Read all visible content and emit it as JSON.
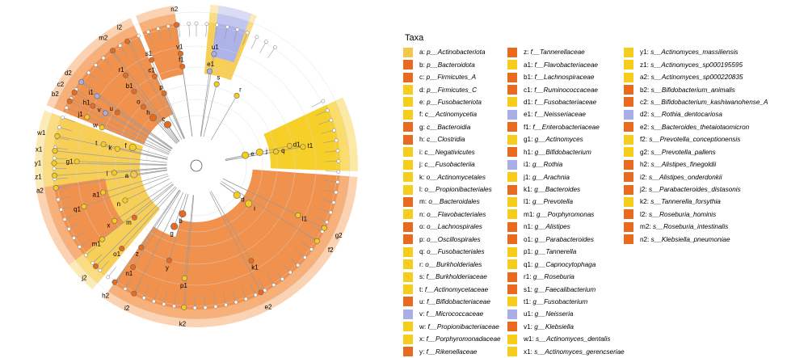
{
  "legend": {
    "title": "Taxa",
    "colors": {
      "O": "#e86a1f",
      "L": "#f5c64a",
      "Y": "#f7cd1d",
      "B": "#a9aee6"
    },
    "columns": [
      [
        {
          "key": "a",
          "name": "p__Actinobacteriota",
          "color": "L"
        },
        {
          "key": "b",
          "name": "p__Bacteroidota",
          "color": "O"
        },
        {
          "key": "c",
          "name": "p__Firmicutes_A",
          "color": "O"
        },
        {
          "key": "d",
          "name": "p__Firmicutes_C",
          "color": "Y"
        },
        {
          "key": "e",
          "name": "p__Fusobacteriota",
          "color": "Y"
        },
        {
          "key": "f",
          "name": "c__Actinomycetia",
          "color": "Y"
        },
        {
          "key": "g",
          "name": "c__Bacteroidia",
          "color": "O"
        },
        {
          "key": "h",
          "name": "c__Clostridia",
          "color": "O"
        },
        {
          "key": "i",
          "name": "c__Negativicutes",
          "color": "Y"
        },
        {
          "key": "j",
          "name": "c__Fusobacteriia",
          "color": "Y"
        },
        {
          "key": "k",
          "name": "o__Actinomycetales",
          "color": "Y"
        },
        {
          "key": "l",
          "name": "o__Propionibacteriales",
          "color": "Y"
        },
        {
          "key": "m",
          "name": "o__Bacteroidales",
          "color": "O"
        },
        {
          "key": "n",
          "name": "o__Flavobacteriales",
          "color": "Y"
        },
        {
          "key": "o",
          "name": "o__Lachnospirales",
          "color": "O"
        },
        {
          "key": "p",
          "name": "o__Oscillospirales",
          "color": "O"
        },
        {
          "key": "q",
          "name": "o__Fusobacteriales",
          "color": "Y"
        },
        {
          "key": "r",
          "name": "o__Burkholderiales",
          "color": "Y"
        },
        {
          "key": "s",
          "name": "f__Burkholderiaceae",
          "color": "Y"
        },
        {
          "key": "t",
          "name": "f__Actinomycetaceae",
          "color": "Y"
        },
        {
          "key": "u",
          "name": "f__Bifidobacteriaceae",
          "color": "O"
        },
        {
          "key": "v",
          "name": "f__Micrococcaceae",
          "color": "B"
        },
        {
          "key": "w",
          "name": "f__Propionibacteriaceae",
          "color": "Y"
        },
        {
          "key": "x",
          "name": "f__Porphyromonadaceae",
          "color": "Y"
        },
        {
          "key": "y",
          "name": "f__Rikenellaceae",
          "color": "O"
        }
      ],
      [
        {
          "key": "z",
          "name": "f__Tannerellaceae",
          "color": "O"
        },
        {
          "key": "a1",
          "name": "f__Flavobacteriaceae",
          "color": "Y"
        },
        {
          "key": "b1",
          "name": "f__Lachnospiraceae",
          "color": "O"
        },
        {
          "key": "c1",
          "name": "f__Ruminococcaceae",
          "color": "O"
        },
        {
          "key": "d1",
          "name": "f__Fusobacteriaceae",
          "color": "Y"
        },
        {
          "key": "e1",
          "name": "f__Neisseriaceae",
          "color": "B"
        },
        {
          "key": "f1",
          "name": "f__Enterobacteriaceae",
          "color": "O"
        },
        {
          "key": "g1",
          "name": "g__Actinomyces",
          "color": "Y"
        },
        {
          "key": "h1",
          "name": "g__Bifidobacterium",
          "color": "O"
        },
        {
          "key": "i1",
          "name": "g__Rothia",
          "color": "B"
        },
        {
          "key": "j1",
          "name": "g__Arachnia",
          "color": "Y"
        },
        {
          "key": "k1",
          "name": "g__Bacteroides",
          "color": "O"
        },
        {
          "key": "l1",
          "name": "g__Prevotella",
          "color": "Y"
        },
        {
          "key": "m1",
          "name": "g__Porphyromonas",
          "color": "Y"
        },
        {
          "key": "n1",
          "name": "g__Alistipes",
          "color": "O"
        },
        {
          "key": "o1",
          "name": "g__Parabacteroides",
          "color": "O"
        },
        {
          "key": "p1",
          "name": "g__Tannerella",
          "color": "Y"
        },
        {
          "key": "q1",
          "name": "g__Capnocytophaga",
          "color": "Y"
        },
        {
          "key": "r1",
          "name": "g__Roseburia",
          "color": "O"
        },
        {
          "key": "s1",
          "name": "g__Faecalibacterium",
          "color": "O"
        },
        {
          "key": "t1",
          "name": "g__Fusobacterium",
          "color": "Y"
        },
        {
          "key": "u1",
          "name": "g__Neisseria",
          "color": "B"
        },
        {
          "key": "v1",
          "name": "g__Klebsiella",
          "color": "O"
        },
        {
          "key": "w1",
          "name": "s__Actinomyces_dentalis",
          "color": "Y"
        },
        {
          "key": "x1",
          "name": "s__Actinomyces_gerencseriae",
          "color": "Y"
        }
      ],
      [
        {
          "key": "y1",
          "name": "s__Actinomyces_massiliensis",
          "color": "Y"
        },
        {
          "key": "z1",
          "name": "s__Actinomyces_sp000195595",
          "color": "Y"
        },
        {
          "key": "a2",
          "name": "s__Actinomyces_sp000220835",
          "color": "Y"
        },
        {
          "key": "b2",
          "name": "s__Bifidobacterium_animalis",
          "color": "O"
        },
        {
          "key": "c2",
          "name": "s__Bifidobacterium_kashiwanohense_A",
          "color": "O"
        },
        {
          "key": "d2",
          "name": "s__Rothia_dentocariosa",
          "color": "B"
        },
        {
          "key": "e2",
          "name": "s__Bacteroides_thetaiotaomicron",
          "color": "O"
        },
        {
          "key": "f2",
          "name": "s__Prevotella_conceptionensis",
          "color": "Y"
        },
        {
          "key": "g2",
          "name": "s__Prevotella_pallens",
          "color": "Y"
        },
        {
          "key": "h2",
          "name": "s__Alistipes_finegoldii",
          "color": "O"
        },
        {
          "key": "i2",
          "name": "s__Alistipes_onderdonkii",
          "color": "O"
        },
        {
          "key": "j2",
          "name": "s__Parabacteroides_distasonis",
          "color": "O"
        },
        {
          "key": "k2",
          "name": "s__Tannerella_forsythia",
          "color": "Y"
        },
        {
          "key": "l2",
          "name": "s__Roseburia_hominis",
          "color": "O"
        },
        {
          "key": "m2",
          "name": "s__Roseburia_intestinalis",
          "color": "O"
        },
        {
          "key": "n2",
          "name": "s__Klebsiella_pneumoniae",
          "color": "O"
        }
      ]
    ]
  },
  "cladogram": {
    "sectors": [
      {
        "from": 94,
        "to": 196,
        "color": "O",
        "level": 1
      },
      {
        "from": 196,
        "to": 215,
        "color": "O",
        "level": 2
      },
      {
        "from": 220,
        "to": 290,
        "color": "L",
        "level": 1
      },
      {
        "from": 232,
        "to": 262,
        "color": "O",
        "level": 3
      },
      {
        "from": 292,
        "to": 336,
        "color": "O",
        "level": 1
      },
      {
        "from": 338,
        "to": 352,
        "color": "O",
        "level": 3
      },
      {
        "from": 5,
        "to": 22,
        "color": "L",
        "level": 3
      },
      {
        "from": 8,
        "to": 20,
        "color": "B",
        "level": 4
      },
      {
        "from": 65,
        "to": 92,
        "color": "Y",
        "level": 2
      }
    ],
    "node_labels": [
      {
        "text": "a",
        "angle": 262,
        "r": 78
      },
      {
        "text": "b",
        "angle": 196,
        "r": 62
      },
      {
        "text": "c",
        "angle": 325,
        "r": 62
      },
      {
        "text": "d",
        "angle": 126,
        "r": 62
      },
      {
        "text": "e",
        "angle": 78,
        "r": 62
      },
      {
        "text": "f",
        "angle": 286,
        "r": 82
      },
      {
        "text": "g",
        "angle": 200,
        "r": 80
      },
      {
        "text": "h",
        "angle": 318,
        "r": 80
      },
      {
        "text": "i",
        "angle": 126,
        "r": 80
      },
      {
        "text": "j",
        "angle": 78,
        "r": 80
      },
      {
        "text": "k",
        "angle": 282,
        "r": 100
      },
      {
        "text": "l",
        "angle": 265,
        "r": 102
      },
      {
        "text": "m",
        "angle": 230,
        "r": 100
      },
      {
        "text": "n",
        "angle": 244,
        "r": 98
      },
      {
        "text": "o",
        "angle": 318,
        "r": 98
      },
      {
        "text": "p",
        "angle": 336,
        "r": 98
      },
      {
        "text": "q",
        "angle": 80,
        "r": 100
      },
      {
        "text": "r",
        "angle": 30,
        "r": 100
      },
      {
        "text": "s",
        "angle": 14,
        "r": 104
      },
      {
        "text": "t",
        "angle": 283,
        "r": 118
      },
      {
        "text": "u",
        "angle": 304,
        "r": 118
      },
      {
        "text": "v",
        "angle": 300,
        "r": 130
      },
      {
        "text": "w",
        "angle": 292,
        "r": 126
      },
      {
        "text": "x",
        "angle": 236,
        "r": 122
      },
      {
        "text": "y",
        "angle": 196,
        "r": 122
      },
      {
        "text": "z",
        "angle": 214,
        "r": 122
      },
      {
        "text": "a1",
        "angle": 254,
        "r": 120
      },
      {
        "text": "b1",
        "angle": 320,
        "r": 120
      },
      {
        "text": "c1",
        "angle": 335,
        "r": 122
      },
      {
        "text": "d1",
        "angle": 78,
        "r": 118
      },
      {
        "text": "e1",
        "angle": 8,
        "r": 118
      },
      {
        "text": "f1",
        "angle": 352,
        "r": 124
      },
      {
        "text": "g1",
        "angle": 272,
        "r": 148
      },
      {
        "text": "h1",
        "angle": 300,
        "r": 148
      },
      {
        "text": "i1",
        "angle": 305,
        "r": 150
      },
      {
        "text": "j1",
        "angle": 294,
        "r": 148
      },
      {
        "text": "k1",
        "angle": 150,
        "r": 136
      },
      {
        "text": "l1",
        "angle": 116,
        "r": 140
      },
      {
        "text": "m1",
        "angle": 232,
        "r": 148
      },
      {
        "text": "n1",
        "angle": 212,
        "r": 148
      },
      {
        "text": "o1",
        "angle": 222,
        "r": 138
      },
      {
        "text": "p1",
        "angle": 186,
        "r": 140
      },
      {
        "text": "q1",
        "angle": 250,
        "r": 148
      },
      {
        "text": "r1",
        "angle": 322,
        "r": 142
      },
      {
        "text": "s1",
        "angle": 337,
        "r": 142
      },
      {
        "text": "t1",
        "angle": 80,
        "r": 134
      },
      {
        "text": "u1",
        "angle": 9,
        "r": 140
      },
      {
        "text": "v1",
        "angle": 352,
        "r": 140
      },
      {
        "text": "w1",
        "angle": 282,
        "r": 198
      },
      {
        "text": "x1",
        "angle": 276,
        "r": 198
      },
      {
        "text": "y1",
        "angle": 271,
        "r": 198
      },
      {
        "text": "z1",
        "angle": 266,
        "r": 198
      },
      {
        "text": "a2",
        "angle": 261,
        "r": 198
      },
      {
        "text": "b2",
        "angle": 297,
        "r": 198
      },
      {
        "text": "c2",
        "angle": 301,
        "r": 198
      },
      {
        "text": "d2",
        "angle": 306,
        "r": 198
      },
      {
        "text": "e2",
        "angle": 153,
        "r": 198
      },
      {
        "text": "f2",
        "angle": 122,
        "r": 198
      },
      {
        "text": "g2",
        "angle": 116,
        "r": 198
      },
      {
        "text": "h2",
        "angle": 215,
        "r": 198
      },
      {
        "text": "i2",
        "angle": 206,
        "r": 198
      },
      {
        "text": "j2",
        "angle": 225,
        "r": 198
      },
      {
        "text": "k2",
        "angle": 185,
        "r": 198
      },
      {
        "text": "l2",
        "angle": 331,
        "r": 198
      },
      {
        "text": "m2",
        "angle": 324,
        "r": 198
      },
      {
        "text": "n2",
        "angle": 352,
        "r": 198
      }
    ]
  }
}
